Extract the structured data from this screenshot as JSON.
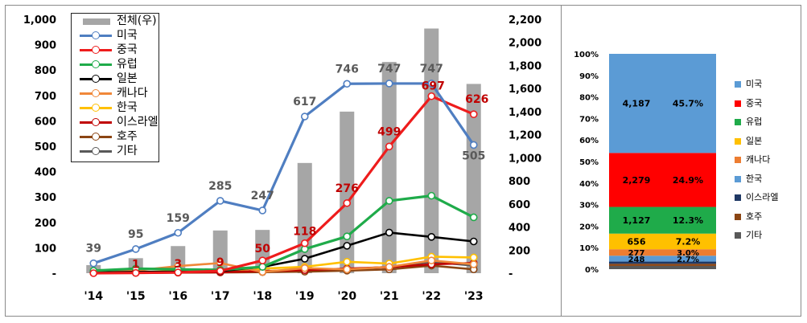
{
  "left_chart": {
    "y_left_ticks": [
      "1,000",
      "900",
      "800",
      "700",
      "600",
      "500",
      "400",
      "300",
      "200",
      "100",
      "-"
    ],
    "y_right_ticks": [
      "2,200",
      "2,000",
      "1,800",
      "1,600",
      "1,400",
      "1,200",
      "1,000",
      "800",
      "600",
      "400",
      "200",
      "-"
    ],
    "legend": [
      "전체(우)",
      "미국",
      "중국",
      "유럽",
      "일본",
      "캐나다",
      "한국",
      "이스라엘",
      "호주",
      "기타"
    ]
  },
  "right_chart": {
    "y_ticks": [
      "100%",
      "90%",
      "80%",
      "70%",
      "60%",
      "50%",
      "40%",
      "30%",
      "20%",
      "10%",
      "0%"
    ],
    "legend": [
      "미국",
      "중국",
      "유럽",
      "일본",
      "캐나다",
      "한국",
      "이스라엘",
      "호주",
      "기타"
    ]
  },
  "chart_data": [
    {
      "type": "bar+line",
      "categories": [
        "'14",
        "'15",
        "'16",
        "'17",
        "'18",
        "'19",
        "'20",
        "'21",
        "'22",
        "'23"
      ],
      "y_left_lim": [
        0,
        1000
      ],
      "y_right_lim": [
        0,
        2200
      ],
      "grid": false,
      "legend_position": "top-left",
      "bar_series": {
        "name": "전체(우)",
        "axis": "right",
        "color": "#a6a6a6",
        "values": [
          70,
          130,
          235,
          370,
          375,
          955,
          1400,
          1830,
          2120,
          1640
        ]
      },
      "line_series": [
        {
          "name": "미국",
          "color": "#4f7ec1",
          "values": [
            39,
            95,
            159,
            285,
            247,
            617,
            746,
            747,
            747,
            505
          ],
          "labels": [
            "39",
            "95",
            "159",
            "285",
            "247",
            "617",
            "746",
            "747",
            "747",
            "505"
          ]
        },
        {
          "name": "중국",
          "color": "#ee1c1c",
          "values": [
            0,
            1,
            3,
            9,
            50,
            118,
            276,
            499,
            697,
            626
          ],
          "labels": [
            "",
            "1",
            "3",
            "9",
            "50",
            "118",
            "276",
            "499",
            "697",
            "626"
          ]
        },
        {
          "name": "유럽",
          "color": "#1fab4a",
          "values": [
            10,
            18,
            15,
            13,
            25,
            95,
            145,
            285,
            305,
            220
          ]
        },
        {
          "name": "일본",
          "color": "#000000",
          "values": [
            3,
            5,
            6,
            8,
            25,
            57,
            108,
            160,
            143,
            125
          ]
        },
        {
          "name": "캐나다",
          "color": "#f0883a",
          "values": [
            5,
            10,
            28,
            40,
            5,
            20,
            15,
            25,
            50,
            35
          ]
        },
        {
          "name": "한국",
          "color": "#ffc000",
          "values": [
            2,
            4,
            8,
            12,
            18,
            25,
            45,
            38,
            65,
            62
          ]
        },
        {
          "name": "이스라엘",
          "color": "#c00000",
          "values": [
            1,
            2,
            3,
            4,
            8,
            12,
            18,
            24,
            35,
            40
          ]
        },
        {
          "name": "호주",
          "color": "#8b4513",
          "values": [
            1,
            1,
            2,
            3,
            4,
            6,
            10,
            15,
            30,
            15
          ]
        },
        {
          "name": "기타",
          "color": "#595959",
          "values": [
            2,
            3,
            4,
            5,
            8,
            10,
            15,
            25,
            45,
            30
          ]
        }
      ]
    },
    {
      "type": "stacked-bar-100",
      "ylim": [
        0,
        100
      ],
      "legend_position": "right",
      "segments": [
        {
          "name": "기타",
          "value": null,
          "share": 1.5,
          "color": "#595959"
        },
        {
          "name": "호주",
          "value": null,
          "share": 1.0,
          "color": "#8b4513"
        },
        {
          "name": "이스라엘",
          "value": null,
          "share": 1.0,
          "color": "#1f3864"
        },
        {
          "name": "한국",
          "value": 248,
          "share": 2.7,
          "label_value": "248",
          "label_share": "2.7%",
          "color": "#5b9bd5"
        },
        {
          "name": "캐나다",
          "value": 277,
          "share": 3.0,
          "label_value": "277",
          "label_share": "3.0%",
          "color": "#ed7d31"
        },
        {
          "name": "일본",
          "value": 656,
          "share": 7.2,
          "label_value": "656",
          "label_share": "7.2%",
          "color": "#ffc000"
        },
        {
          "name": "유럽",
          "value": 1127,
          "share": 12.3,
          "label_value": "1,127",
          "label_share": "12.3%",
          "color": "#1fab4a"
        },
        {
          "name": "중국",
          "value": 2279,
          "share": 24.9,
          "label_value": "2,279",
          "label_share": "24.9%",
          "color": "#ff0000"
        },
        {
          "name": "미국",
          "value": 4187,
          "share": 45.7,
          "label_value": "4,187",
          "label_share": "45.7%",
          "color": "#5b9bd5"
        }
      ]
    }
  ]
}
